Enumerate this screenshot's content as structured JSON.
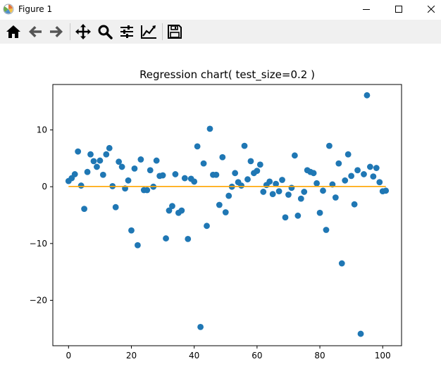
{
  "window": {
    "title": "Figure 1",
    "app_icon": "matplotlib-icon",
    "controls": [
      "minimize-icon",
      "maximize-icon",
      "close-icon"
    ]
  },
  "toolbar": {
    "tools": [
      {
        "name": "home-icon"
      },
      {
        "name": "back-arrow-icon"
      },
      {
        "name": "forward-arrow-icon"
      },
      {
        "name": "pan-icon"
      },
      {
        "name": "zoom-icon"
      },
      {
        "name": "subplots-config-icon"
      },
      {
        "name": "edit-axes-icon"
      },
      {
        "name": "save-icon"
      }
    ]
  },
  "chart_data": {
    "type": "scatter",
    "title": "Regression chart( test_size=0.2 )",
    "xlabel": "",
    "ylabel": "",
    "xlim": [
      -5,
      106
    ],
    "ylim": [
      -28,
      18
    ],
    "xticks": [
      0,
      20,
      40,
      60,
      80,
      100
    ],
    "yticks": [
      -20,
      -10,
      0,
      10
    ],
    "grid": false,
    "legend": "none",
    "colors": {
      "points": "#1f77b4",
      "line": "#ffa500",
      "axes": "#000000"
    },
    "series": [
      {
        "type": "scatter",
        "x": [
          0,
          1,
          2,
          3,
          4,
          5,
          6,
          7,
          8,
          9,
          10,
          11,
          12,
          13,
          14,
          15,
          16,
          17,
          18,
          19,
          20,
          21,
          22,
          23,
          24,
          25,
          26,
          27,
          28,
          29,
          30,
          31,
          32,
          33,
          34,
          35,
          36,
          37,
          38,
          39,
          40,
          41,
          42,
          43,
          44,
          45,
          46,
          47,
          48,
          49,
          50,
          51,
          52,
          53,
          54,
          55,
          56,
          57,
          58,
          59,
          60,
          61,
          62,
          63,
          64,
          65,
          66,
          67,
          68,
          69,
          70,
          71,
          72,
          73,
          74,
          75,
          76,
          77,
          78,
          79,
          80,
          81,
          82,
          83,
          84,
          85,
          86,
          87,
          88,
          89,
          90,
          91,
          92,
          93,
          94,
          95,
          96,
          97,
          98,
          99,
          100,
          101
        ],
        "y": [
          1.0,
          1.5,
          2.2,
          6.2,
          0.2,
          -3.9,
          2.6,
          5.7,
          4.5,
          3.5,
          4.6,
          2.1,
          5.7,
          6.8,
          0.1,
          -3.6,
          4.4,
          3.5,
          -0.3,
          1.1,
          -7.7,
          3.2,
          -10.3,
          4.8,
          -0.6,
          -0.6,
          2.9,
          0.0,
          4.6,
          1.9,
          2.0,
          -9.1,
          -4.2,
          -3.4,
          2.2,
          -4.6,
          -4.2,
          1.5,
          -9.2,
          1.4,
          0.9,
          7.1,
          -24.7,
          4.1,
          -6.9,
          10.2,
          2.1,
          2.1,
          -3.2,
          5.2,
          -4.5,
          -1.6,
          0.0,
          2.4,
          0.8,
          0.2,
          7.2,
          1.3,
          4.5,
          2.4,
          2.8,
          3.9,
          -0.9,
          0.3,
          0.9,
          -1.3,
          0.5,
          -0.8,
          1.2,
          -5.4,
          -1.4,
          -0.2,
          5.5,
          -5.1,
          -2.1,
          -0.9,
          2.9,
          2.6,
          2.4,
          0.6,
          -4.6,
          -0.7,
          -7.6,
          7.2,
          0.4,
          -1.9,
          4.1,
          -13.5,
          1.1,
          5.7,
          1.9,
          -3.1,
          2.9,
          -25.9,
          2.2,
          16.1,
          3.5,
          1.8,
          3.3,
          0.8,
          -0.8,
          -0.7
        ]
      },
      {
        "type": "line",
        "x": [
          0,
          101
        ],
        "y": [
          0.05,
          0.05
        ]
      }
    ]
  }
}
